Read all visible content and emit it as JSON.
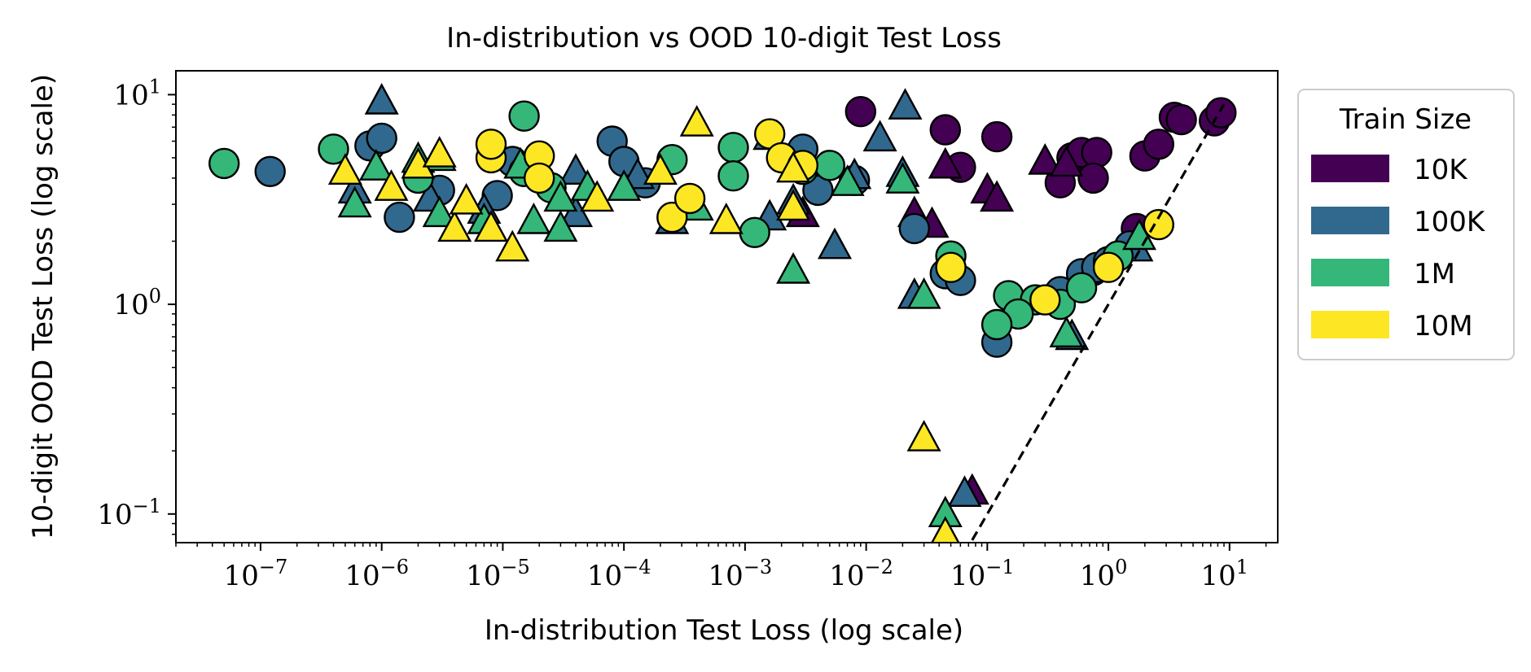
{
  "chart_data": {
    "type": "scatter",
    "title": "In-distribution vs OOD 10-digit Test Loss",
    "xlabel": "In-distribution Test Loss (log scale)",
    "ylabel": "10-digit OOD Test Loss (log scale)",
    "x_scale": "log",
    "y_scale": "log",
    "xlim": [
      2e-08,
      25
    ],
    "ylim": [
      0.073,
      13
    ],
    "x_ticks": [
      {
        "value": 1e-07,
        "base": "10",
        "exp": "−7"
      },
      {
        "value": 1e-06,
        "base": "10",
        "exp": "−6"
      },
      {
        "value": 1e-05,
        "base": "10",
        "exp": "−5"
      },
      {
        "value": 0.0001,
        "base": "10",
        "exp": "−4"
      },
      {
        "value": 0.001,
        "base": "10",
        "exp": "−3"
      },
      {
        "value": 0.01,
        "base": "10",
        "exp": "−2"
      },
      {
        "value": 0.1,
        "base": "10",
        "exp": "−1"
      },
      {
        "value": 1,
        "base": "10",
        "exp": "0"
      },
      {
        "value": 10,
        "base": "10",
        "exp": "1"
      }
    ],
    "y_ticks": [
      {
        "value": 0.1,
        "base": "10",
        "exp": "−1"
      },
      {
        "value": 1,
        "base": "10",
        "exp": "0"
      },
      {
        "value": 10,
        "base": "10",
        "exp": "1"
      }
    ],
    "grid": false,
    "reference_line": {
      "style": "dashed",
      "color": "#000000",
      "from": [
        0.075,
        0.075
      ],
      "to": [
        9,
        9
      ]
    },
    "legend": {
      "title": "Train Size",
      "position": "outside-right"
    },
    "series": [
      {
        "name": "10K",
        "color": "#440154",
        "circle": [
          [
            0.009,
            8.3
          ],
          [
            0.045,
            6.8
          ],
          [
            0.06,
            4.5
          ],
          [
            0.12,
            6.3
          ],
          [
            0.4,
            3.8
          ],
          [
            0.5,
            5.0
          ],
          [
            0.6,
            5.3
          ],
          [
            0.8,
            5.3
          ],
          [
            0.75,
            4.0
          ],
          [
            2.0,
            5.1
          ],
          [
            2.6,
            5.8
          ],
          [
            3.5,
            7.8
          ],
          [
            4.0,
            7.6
          ],
          [
            7.5,
            7.5
          ],
          [
            8.5,
            8.2
          ],
          [
            0.75,
            1.45
          ],
          [
            1.7,
            2.3
          ]
        ],
        "triangle": [
          [
            0.003,
            2.7
          ],
          [
            0.025,
            2.7
          ],
          [
            0.035,
            2.4
          ],
          [
            0.045,
            4.6
          ],
          [
            0.1,
            3.5
          ],
          [
            0.12,
            3.2
          ],
          [
            0.3,
            4.8
          ],
          [
            0.45,
            4.7
          ],
          [
            0.075,
            0.128
          ]
        ]
      },
      {
        "name": "100K",
        "color": "#31688e",
        "circle": [
          [
            1.2e-07,
            4.3
          ],
          [
            8e-07,
            5.7
          ],
          [
            1e-06,
            6.2
          ],
          [
            1.4e-06,
            2.6
          ],
          [
            3e-06,
            3.5
          ],
          [
            9e-06,
            3.3
          ],
          [
            1.2e-05,
            4.8
          ],
          [
            8e-05,
            6.0
          ],
          [
            0.0001,
            4.8
          ],
          [
            0.00015,
            3.8
          ],
          [
            0.003,
            5.5
          ],
          [
            0.004,
            3.5
          ],
          [
            0.008,
            3.9
          ],
          [
            0.025,
            2.3
          ],
          [
            0.045,
            1.4
          ],
          [
            0.06,
            1.3
          ],
          [
            0.12,
            0.66
          ],
          [
            0.4,
            1.15
          ],
          [
            0.6,
            1.4
          ],
          [
            0.8,
            1.5
          ],
          [
            1.0,
            1.6
          ],
          [
            1.5,
            1.9
          ]
        ],
        "triangle": [
          [
            1e-06,
            9.3
          ],
          [
            6e-07,
            3.5
          ],
          [
            2.5e-06,
            3.2
          ],
          [
            7e-06,
            2.8
          ],
          [
            4e-05,
            4.3
          ],
          [
            4e-05,
            2.7
          ],
          [
            0.00013,
            4.1
          ],
          [
            0.00025,
            2.5
          ],
          [
            0.0016,
            6.3
          ],
          [
            0.0016,
            2.6
          ],
          [
            0.0025,
            3.1
          ],
          [
            0.0055,
            1.9
          ],
          [
            0.008,
            4.1
          ],
          [
            0.013,
            6.2
          ],
          [
            0.02,
            4.2
          ],
          [
            0.021,
            8.8
          ],
          [
            0.025,
            1.1
          ],
          [
            0.5,
            0.7
          ],
          [
            1.7,
            1.85
          ],
          [
            0.065,
            0.125
          ]
        ]
      },
      {
        "name": "1M",
        "color": "#35b779",
        "circle": [
          [
            5e-08,
            4.7
          ],
          [
            4e-07,
            5.5
          ],
          [
            2e-06,
            4.0
          ],
          [
            1.5e-05,
            7.9
          ],
          [
            1.5e-05,
            4.3
          ],
          [
            2.5e-05,
            3.6
          ],
          [
            0.00025,
            4.9
          ],
          [
            0.0008,
            5.6
          ],
          [
            0.0008,
            4.1
          ],
          [
            0.0012,
            2.2
          ],
          [
            0.003,
            4.4
          ],
          [
            0.005,
            4.6
          ],
          [
            0.05,
            1.7
          ],
          [
            0.15,
            1.1
          ],
          [
            0.25,
            1.05
          ],
          [
            0.18,
            0.9
          ],
          [
            0.12,
            0.8
          ],
          [
            0.4,
            1.0
          ],
          [
            0.6,
            1.2
          ],
          [
            1.2,
            1.7
          ]
        ],
        "triangle": [
          [
            6e-07,
            3.0
          ],
          [
            9e-07,
            4.5
          ],
          [
            2e-06,
            4.9
          ],
          [
            3e-06,
            2.7
          ],
          [
            3e-06,
            5.0
          ],
          [
            7e-06,
            2.5
          ],
          [
            1.4e-05,
            4.6
          ],
          [
            1.8e-05,
            2.5
          ],
          [
            3e-05,
            2.3
          ],
          [
            3e-05,
            3.2
          ],
          [
            5e-05,
            3.6
          ],
          [
            0.0001,
            3.6
          ],
          [
            0.0004,
            2.9
          ],
          [
            0.0025,
            1.45
          ],
          [
            0.007,
            3.8
          ],
          [
            0.02,
            3.9
          ],
          [
            0.03,
            1.1
          ],
          [
            0.045,
            0.1
          ],
          [
            0.45,
            0.72
          ],
          [
            1.8,
            2.1
          ]
        ]
      },
      {
        "name": "10M",
        "color": "#fde725",
        "circle": [
          [
            8e-06,
            5.0
          ],
          [
            8e-06,
            5.8
          ],
          [
            2e-05,
            5.1
          ],
          [
            2e-05,
            4.0
          ],
          [
            0.00025,
            2.6
          ],
          [
            0.00035,
            3.2
          ],
          [
            0.0016,
            6.5
          ],
          [
            0.002,
            5.0
          ],
          [
            0.003,
            4.6
          ],
          [
            0.05,
            1.5
          ],
          [
            0.3,
            1.05
          ],
          [
            1.0,
            1.5
          ],
          [
            2.6,
            2.4
          ]
        ],
        "triangle": [
          [
            5e-07,
            4.3
          ],
          [
            1.2e-06,
            3.6
          ],
          [
            2e-06,
            4.6
          ],
          [
            3e-06,
            5.2
          ],
          [
            4e-06,
            2.3
          ],
          [
            5e-06,
            3.1
          ],
          [
            8e-06,
            2.3
          ],
          [
            1.2e-05,
            1.85
          ],
          [
            6e-05,
            3.2
          ],
          [
            0.0002,
            4.3
          ],
          [
            0.0004,
            7.3
          ],
          [
            0.0007,
            2.5
          ],
          [
            0.0025,
            4.4
          ],
          [
            0.0025,
            2.9
          ],
          [
            0.03,
            0.23
          ],
          [
            0.045,
            0.08
          ]
        ]
      }
    ]
  }
}
